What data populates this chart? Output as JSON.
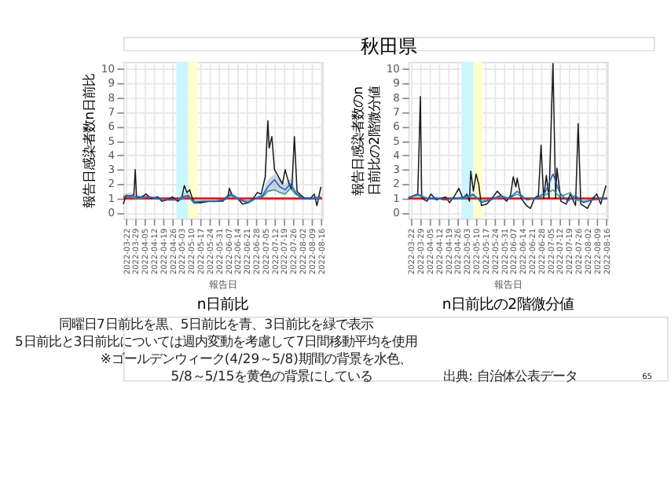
{
  "chart_data": [
    {
      "type": "line",
      "title": "n日前比",
      "xlabel": "報告日",
      "ylabel": "報告日感染者数n日前比",
      "annotations": [
        "秋田県",
        "同曜日7日前比を黒、5日前比を青、3日前比を緑で表示",
        "5日前比と3日前比については週内変動を考慮して7日間移動平均を使用",
        "※ゴールデンウィーク(4/29～5/8)期間の背景を水色、",
        "5/8～5/15を黄色の背景にしている",
        "出典: 自治体公表データ",
        "65"
      ],
      "xlim": [
        "2022-03-20",
        "2022-08-17"
      ],
      "xticks": [
        "2022-03-22",
        "2022-03-29",
        "2022-04-05",
        "2022-04-12",
        "2022-04-19",
        "2022-04-26",
        "2022-05-03",
        "2022-05-10",
        "2022-05-17",
        "2022-05-24",
        "2022-05-31",
        "2022-06-07",
        "2022-06-14",
        "2022-06-21",
        "2022-06-28",
        "2022-07-05",
        "2022-07-12",
        "2022-07-19",
        "2022-07-26",
        "2022-08-02",
        "2022-08-09",
        "2022-08-16"
      ],
      "ylim": [
        -0.4,
        10.5
      ],
      "yticks": [
        0,
        1,
        2,
        3,
        4,
        5,
        6,
        7,
        8,
        9,
        10
      ],
      "grid": true,
      "marker": "none",
      "line_style": "solid",
      "ref_lines": [
        {
          "axis": "y",
          "value": 1,
          "color": "#ff0000"
        }
      ],
      "bands": [
        {
          "axis": "x",
          "from": "2022-04-29",
          "to": "2022-05-08",
          "color": "#ccf6ff"
        },
        {
          "axis": "x",
          "from": "2022-05-08",
          "to": "2022-05-15",
          "color": "#ffffcc"
        }
      ],
      "series": [
        {
          "color": "#1a1a1a",
          "x": [
            "2022-03-20",
            "2022-03-22",
            "2022-03-26",
            "2022-03-28",
            "2022-03-29",
            "2022-03-30",
            "2022-04-03",
            "2022-04-06",
            "2022-04-10",
            "2022-04-15",
            "2022-04-18",
            "2022-04-22",
            "2022-04-26",
            "2022-04-30",
            "2022-05-03",
            "2022-05-05",
            "2022-05-07",
            "2022-05-09",
            "2022-05-11",
            "2022-05-13",
            "2022-05-18",
            "2022-05-24",
            "2022-05-30",
            "2022-06-03",
            "2022-06-07",
            "2022-06-08",
            "2022-06-10",
            "2022-06-14",
            "2022-06-18",
            "2022-06-22",
            "2022-06-26",
            "2022-06-29",
            "2022-07-02",
            "2022-07-05",
            "2022-07-07",
            "2022-07-08",
            "2022-07-10",
            "2022-07-12",
            "2022-07-15",
            "2022-07-18",
            "2022-07-20",
            "2022-07-23",
            "2022-07-25",
            "2022-07-27",
            "2022-07-29",
            "2022-08-01",
            "2022-08-04",
            "2022-08-08",
            "2022-08-11",
            "2022-08-13",
            "2022-08-16"
          ],
          "values": [
            0.6,
            1.2,
            1.1,
            1.3,
            3.0,
            1.0,
            1.1,
            1.3,
            1.0,
            1.1,
            0.8,
            0.9,
            1.1,
            0.8,
            1.0,
            1.9,
            1.4,
            1.6,
            1.0,
            0.7,
            0.7,
            0.8,
            0.8,
            0.8,
            1.2,
            1.7,
            1.2,
            1.0,
            0.6,
            0.7,
            1.0,
            1.4,
            1.3,
            2.5,
            6.4,
            4.5,
            5.3,
            3.0,
            2.5,
            2.0,
            3.0,
            2.0,
            1.6,
            5.3,
            1.5,
            1.2,
            1.0,
            1.0,
            1.3,
            0.5,
            1.8
          ]
        },
        {
          "color": "#2a9d7a",
          "x": [
            "2022-03-20",
            "2022-03-25",
            "2022-04-01",
            "2022-04-08",
            "2022-04-15",
            "2022-04-22",
            "2022-04-29",
            "2022-05-04",
            "2022-05-08",
            "2022-05-12",
            "2022-05-20",
            "2022-05-28",
            "2022-06-04",
            "2022-06-09",
            "2022-06-16",
            "2022-06-22",
            "2022-06-28",
            "2022-07-03",
            "2022-07-07",
            "2022-07-12",
            "2022-07-16",
            "2022-07-20",
            "2022-07-24",
            "2022-07-28",
            "2022-08-02",
            "2022-08-09",
            "2022-08-16"
          ],
          "values": [
            1.1,
            1.1,
            1.0,
            1.1,
            1.0,
            0.9,
            0.9,
            1.0,
            1.1,
            0.8,
            0.8,
            0.8,
            0.9,
            1.2,
            0.9,
            0.8,
            1.0,
            1.1,
            1.5,
            1.6,
            1.4,
            1.3,
            1.7,
            1.3,
            1.0,
            1.0,
            1.0
          ]
        },
        {
          "color": "#1f5fd6",
          "x": [
            "2022-03-20",
            "2022-03-25",
            "2022-04-01",
            "2022-04-08",
            "2022-04-15",
            "2022-04-22",
            "2022-04-29",
            "2022-05-04",
            "2022-05-08",
            "2022-05-12",
            "2022-05-20",
            "2022-05-28",
            "2022-06-04",
            "2022-06-09",
            "2022-06-16",
            "2022-06-22",
            "2022-06-28",
            "2022-07-03",
            "2022-07-07",
            "2022-07-12",
            "2022-07-16",
            "2022-07-20",
            "2022-07-24",
            "2022-07-28",
            "2022-08-02",
            "2022-08-09",
            "2022-08-16"
          ],
          "values": [
            1.1,
            1.2,
            1.1,
            1.1,
            1.0,
            0.9,
            0.9,
            1.1,
            1.2,
            0.7,
            0.8,
            0.8,
            0.9,
            1.3,
            0.9,
            0.7,
            1.0,
            1.2,
            1.8,
            2.3,
            1.8,
            1.6,
            2.0,
            1.4,
            1.0,
            1.0,
            1.1
          ],
          "lower": [
            0.9,
            1.0,
            1.0,
            1.0,
            0.9,
            0.8,
            0.8,
            0.9,
            1.0,
            0.6,
            0.7,
            0.7,
            0.8,
            1.1,
            0.8,
            0.6,
            0.9,
            1.0,
            1.4,
            1.6,
            1.4,
            1.3,
            1.6,
            1.2,
            0.9,
            0.9,
            1.0
          ],
          "upper": [
            1.3,
            1.4,
            1.2,
            1.2,
            1.1,
            1.0,
            1.0,
            1.3,
            1.4,
            0.8,
            0.9,
            0.9,
            1.0,
            1.5,
            1.0,
            0.8,
            1.1,
            1.4,
            2.3,
            2.7,
            2.3,
            2.0,
            2.4,
            1.6,
            1.1,
            1.1,
            1.2
          ]
        }
      ]
    },
    {
      "type": "line",
      "title": "n日前比の2階微分値",
      "xlabel": "報告日",
      "ylabel": "報告日感染者数のn日前比の2階微分値",
      "xlim": [
        "2022-03-20",
        "2022-08-17"
      ],
      "xticks": [
        "2022-03-22",
        "2022-03-29",
        "2022-04-05",
        "2022-04-12",
        "2022-04-19",
        "2022-04-26",
        "2022-05-03",
        "2022-05-10",
        "2022-05-17",
        "2022-05-24",
        "2022-05-31",
        "2022-06-07",
        "2022-06-14",
        "2022-06-21",
        "2022-06-28",
        "2022-07-05",
        "2022-07-12",
        "2022-07-19",
        "2022-07-26",
        "2022-08-02",
        "2022-08-09",
        "2022-08-16"
      ],
      "ylim": [
        -0.4,
        10.5
      ],
      "yticks": [
        0,
        1,
        2,
        3,
        4,
        5,
        6,
        7,
        8,
        9,
        10
      ],
      "grid": true,
      "marker": "none",
      "line_style": "solid",
      "ref_lines": [
        {
          "axis": "y",
          "value": 1,
          "color": "#ff0000"
        }
      ],
      "bands": [
        {
          "axis": "x",
          "from": "2022-04-29",
          "to": "2022-05-08",
          "color": "#ccf6ff"
        },
        {
          "axis": "x",
          "from": "2022-05-08",
          "to": "2022-05-15",
          "color": "#ffffcc"
        }
      ],
      "series": [
        {
          "color": "#1a1a1a",
          "x": [
            "2022-03-20",
            "2022-03-24",
            "2022-03-27",
            "2022-03-28",
            "2022-03-29",
            "2022-03-30",
            "2022-04-03",
            "2022-04-06",
            "2022-04-10",
            "2022-04-14",
            "2022-04-17",
            "2022-04-20",
            "2022-04-24",
            "2022-04-27",
            "2022-04-30",
            "2022-05-03",
            "2022-05-05",
            "2022-05-06",
            "2022-05-08",
            "2022-05-10",
            "2022-05-12",
            "2022-05-14",
            "2022-05-18",
            "2022-05-22",
            "2022-05-26",
            "2022-05-29",
            "2022-06-02",
            "2022-06-05",
            "2022-06-07",
            "2022-06-09",
            "2022-06-10",
            "2022-06-13",
            "2022-06-17",
            "2022-06-20",
            "2022-06-23",
            "2022-06-26",
            "2022-06-28",
            "2022-06-30",
            "2022-07-02",
            "2022-07-04",
            "2022-07-07",
            "2022-07-09",
            "2022-07-10",
            "2022-07-13",
            "2022-07-17",
            "2022-07-20",
            "2022-07-24",
            "2022-07-26",
            "2022-07-28",
            "2022-08-02",
            "2022-08-06",
            "2022-08-09",
            "2022-08-12",
            "2022-08-16"
          ],
          "values": [
            1.0,
            1.2,
            1.3,
            4.5,
            8.1,
            1.0,
            0.8,
            1.3,
            0.9,
            1.0,
            1.1,
            0.7,
            1.2,
            1.7,
            1.0,
            1.3,
            0.8,
            2.9,
            1.5,
            2.7,
            2.0,
            0.5,
            0.6,
            1.0,
            1.5,
            1.2,
            0.8,
            1.2,
            2.5,
            1.8,
            2.4,
            1.0,
            0.5,
            0.3,
            1.0,
            1.2,
            4.7,
            1.0,
            2.6,
            1.0,
            10.4,
            1.0,
            3.1,
            0.8,
            0.6,
            1.3,
            0.5,
            6.2,
            0.6,
            0.3,
            1.0,
            1.3,
            0.6,
            1.9
          ]
        },
        {
          "color": "#2a9d7a",
          "x": [
            "2022-03-20",
            "2022-03-27",
            "2022-04-03",
            "2022-04-10",
            "2022-04-17",
            "2022-04-24",
            "2022-05-01",
            "2022-05-08",
            "2022-05-14",
            "2022-05-21",
            "2022-05-28",
            "2022-06-04",
            "2022-06-10",
            "2022-06-17",
            "2022-06-24",
            "2022-07-01",
            "2022-07-07",
            "2022-07-12",
            "2022-07-20",
            "2022-07-24",
            "2022-07-30",
            "2022-08-06",
            "2022-08-16"
          ],
          "values": [
            1.1,
            1.2,
            1.0,
            1.0,
            0.9,
            1.0,
            1.0,
            1.2,
            0.8,
            0.9,
            1.1,
            1.0,
            1.3,
            0.9,
            1.0,
            1.2,
            1.6,
            1.1,
            1.4,
            0.9,
            0.8,
            0.9,
            1.0
          ]
        },
        {
          "color": "#1f5fd6",
          "x": [
            "2022-03-20",
            "2022-03-27",
            "2022-04-03",
            "2022-04-10",
            "2022-04-17",
            "2022-04-24",
            "2022-05-01",
            "2022-05-08",
            "2022-05-14",
            "2022-05-21",
            "2022-05-28",
            "2022-06-04",
            "2022-06-10",
            "2022-06-17",
            "2022-06-24",
            "2022-07-01",
            "2022-07-07",
            "2022-07-12",
            "2022-07-18",
            "2022-07-24",
            "2022-07-30",
            "2022-08-06",
            "2022-08-16"
          ],
          "values": [
            1.0,
            1.3,
            1.0,
            1.0,
            0.9,
            1.0,
            1.1,
            1.3,
            0.7,
            0.9,
            1.2,
            1.0,
            1.5,
            0.9,
            1.0,
            1.4,
            2.7,
            1.4,
            0.8,
            1.2,
            0.7,
            0.9,
            1.0
          ]
        }
      ]
    }
  ]
}
